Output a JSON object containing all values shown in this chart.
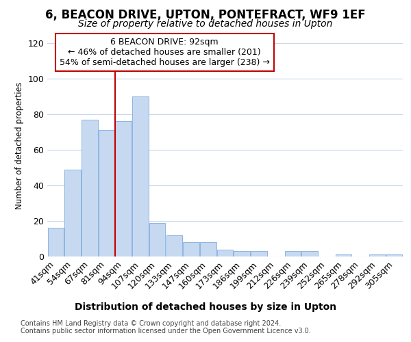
{
  "title1": "6, BEACON DRIVE, UPTON, PONTEFRACT, WF9 1EF",
  "title2": "Size of property relative to detached houses in Upton",
  "xlabel": "Distribution of detached houses by size in Upton",
  "ylabel": "Number of detached properties",
  "categories": [
    "41sqm",
    "54sqm",
    "67sqm",
    "81sqm",
    "94sqm",
    "107sqm",
    "120sqm",
    "133sqm",
    "147sqm",
    "160sqm",
    "173sqm",
    "186sqm",
    "199sqm",
    "212sqm",
    "226sqm",
    "239sqm",
    "252sqm",
    "265sqm",
    "278sqm",
    "292sqm",
    "305sqm"
  ],
  "values": [
    16,
    49,
    77,
    71,
    76,
    90,
    19,
    12,
    8,
    8,
    4,
    3,
    3,
    0,
    3,
    3,
    0,
    1,
    0,
    1,
    1
  ],
  "bar_color": "#c6d9f0",
  "bar_edge_color": "#8db4e2",
  "vline_color": "#c00000",
  "vline_index": 4,
  "annotation_title": "6 BEACON DRIVE: 92sqm",
  "annotation_line1": "← 46% of detached houses are smaller (201)",
  "annotation_line2": "54% of semi-detached houses are larger (238) →",
  "annotation_box_color": "#ffffff",
  "annotation_box_edge": "#c00000",
  "ylim": [
    0,
    125
  ],
  "yticks": [
    0,
    20,
    40,
    60,
    80,
    100,
    120
  ],
  "footer1": "Contains HM Land Registry data © Crown copyright and database right 2024.",
  "footer2": "Contains public sector information licensed under the Open Government Licence v3.0.",
  "bg_color": "#ffffff",
  "plot_bg_color": "#ffffff",
  "grid_color": "#c8d8e8",
  "title1_fontsize": 12,
  "title2_fontsize": 10,
  "xlabel_fontsize": 10,
  "ylabel_fontsize": 8.5,
  "tick_fontsize": 9,
  "annotation_fontsize": 9,
  "footer_fontsize": 7
}
